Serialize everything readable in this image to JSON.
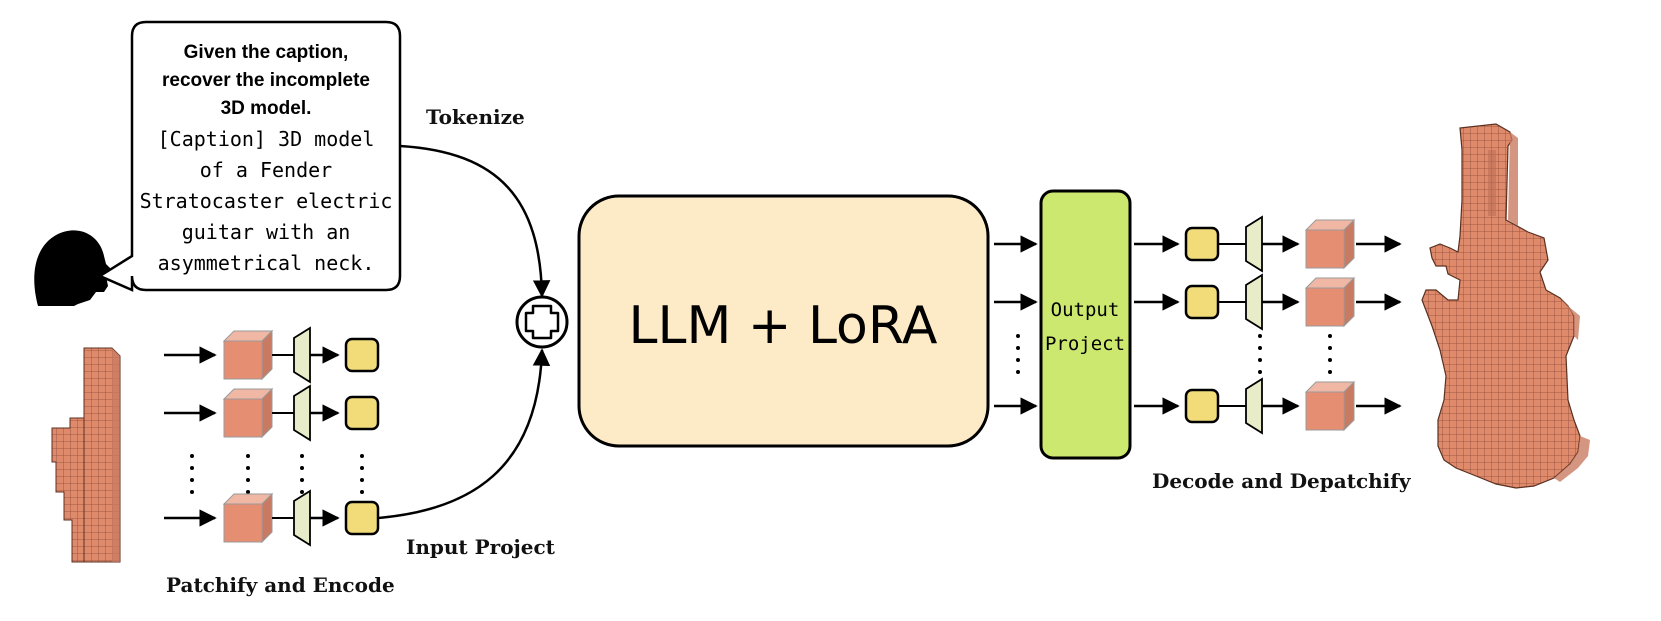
{
  "prompt": {
    "instruction_lines": [
      "Given the caption,",
      "recover the incomplete",
      "3D model."
    ],
    "caption_lines": [
      "[Caption] 3D model",
      "of a Fender",
      "Stratocaster electric",
      "guitar with an",
      "asymmetrical neck."
    ]
  },
  "labels": {
    "tokenize": "Tokenize",
    "patchify": "Patchify and Encode",
    "input_project": "Input Project",
    "llm": "LLM + LoRA",
    "output_project_lines": [
      "Output",
      "Project"
    ],
    "decode": "Decode and Depatchify"
  },
  "colors": {
    "llm_fill": "#fdebc8",
    "output_fill": "#cde86f",
    "token_fill": "#f2dc7a",
    "encoder_fill": "#e8ecc8",
    "cube_front": "#e58e72",
    "cube_top": "#f0b8a4",
    "cube_side": "#c97a62",
    "voxel": "#e08a6c"
  },
  "icons": {
    "speaker": "speaking-head-icon",
    "plus": "circled-plus-icon",
    "input_voxels": "partial-guitar-voxel-icon",
    "output_voxels": "complete-guitar-voxel-icon"
  }
}
